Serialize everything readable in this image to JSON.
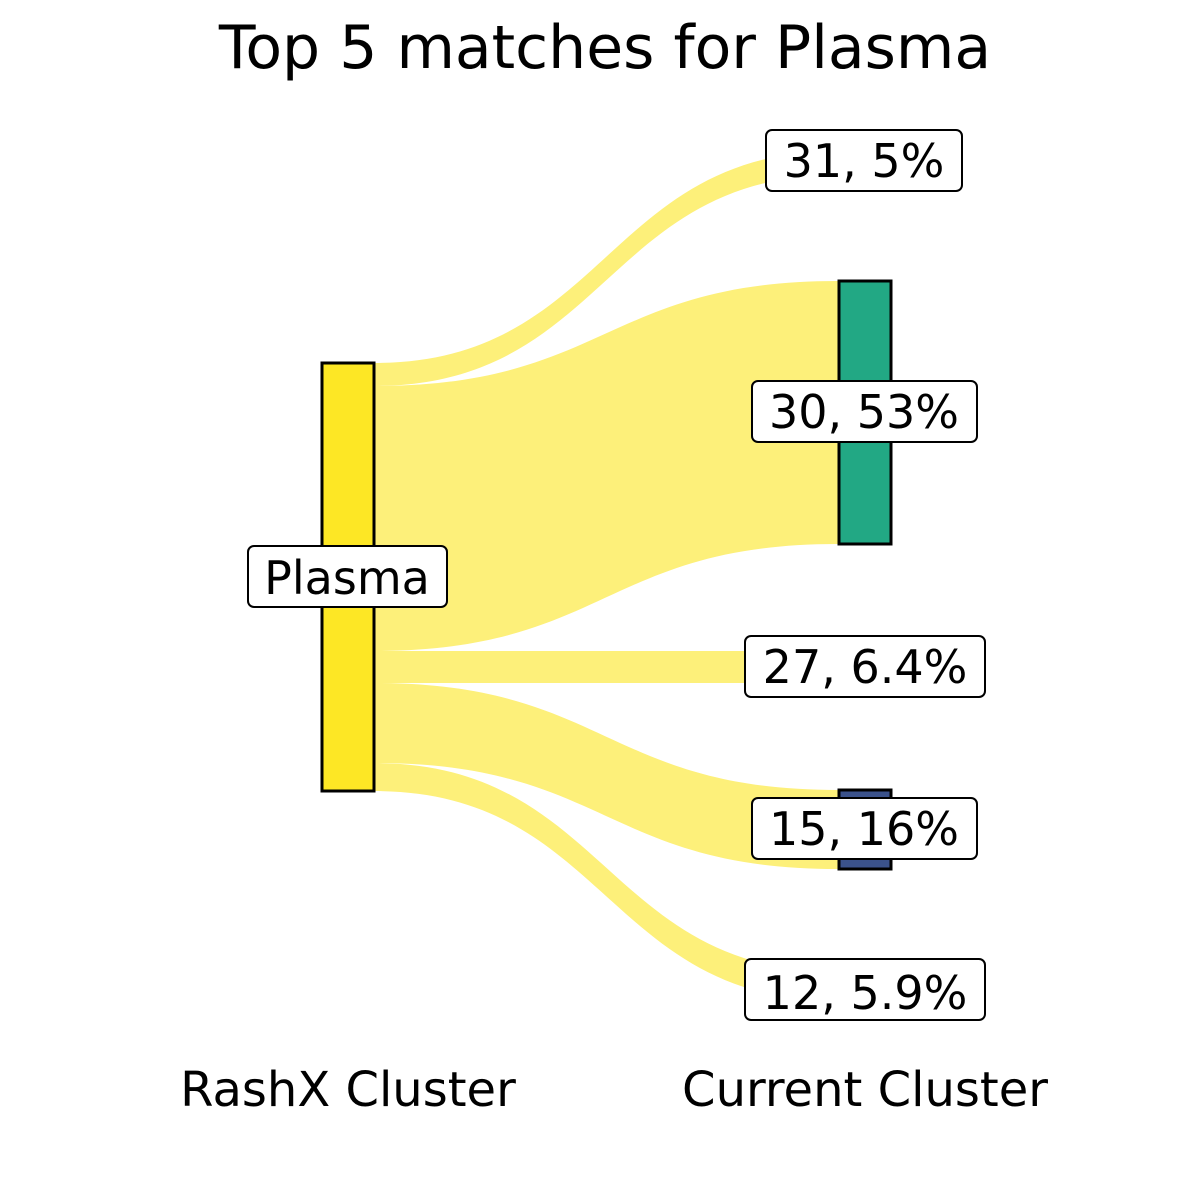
{
  "title": "Top 5 matches for Plasma",
  "colors": {
    "flow": "#fdf07a",
    "source_node": "#fde725",
    "background": "#ffffff",
    "outline": "#000000"
  },
  "columns": {
    "left_label": "RashX Cluster",
    "right_label": "Current Cluster"
  },
  "source": {
    "label": "Plasma",
    "color": "#fde725"
  },
  "chart_data": {
    "type": "sankey",
    "title": "Top 5 matches for Plasma",
    "source": "Plasma",
    "targets": [
      {
        "label": "31, 5%",
        "cluster": "31",
        "percent": 5,
        "color": null
      },
      {
        "label": "30, 53%",
        "cluster": "30",
        "percent": 53,
        "color": "#22a884"
      },
      {
        "label": "27, 6.4%",
        "cluster": "27",
        "percent": 6.4,
        "color": null
      },
      {
        "label": "15, 16%",
        "cluster": "15",
        "percent": 16,
        "color": "#3b528b"
      },
      {
        "label": "12, 5.9%",
        "cluster": "12",
        "percent": 5.9,
        "color": null
      }
    ]
  }
}
